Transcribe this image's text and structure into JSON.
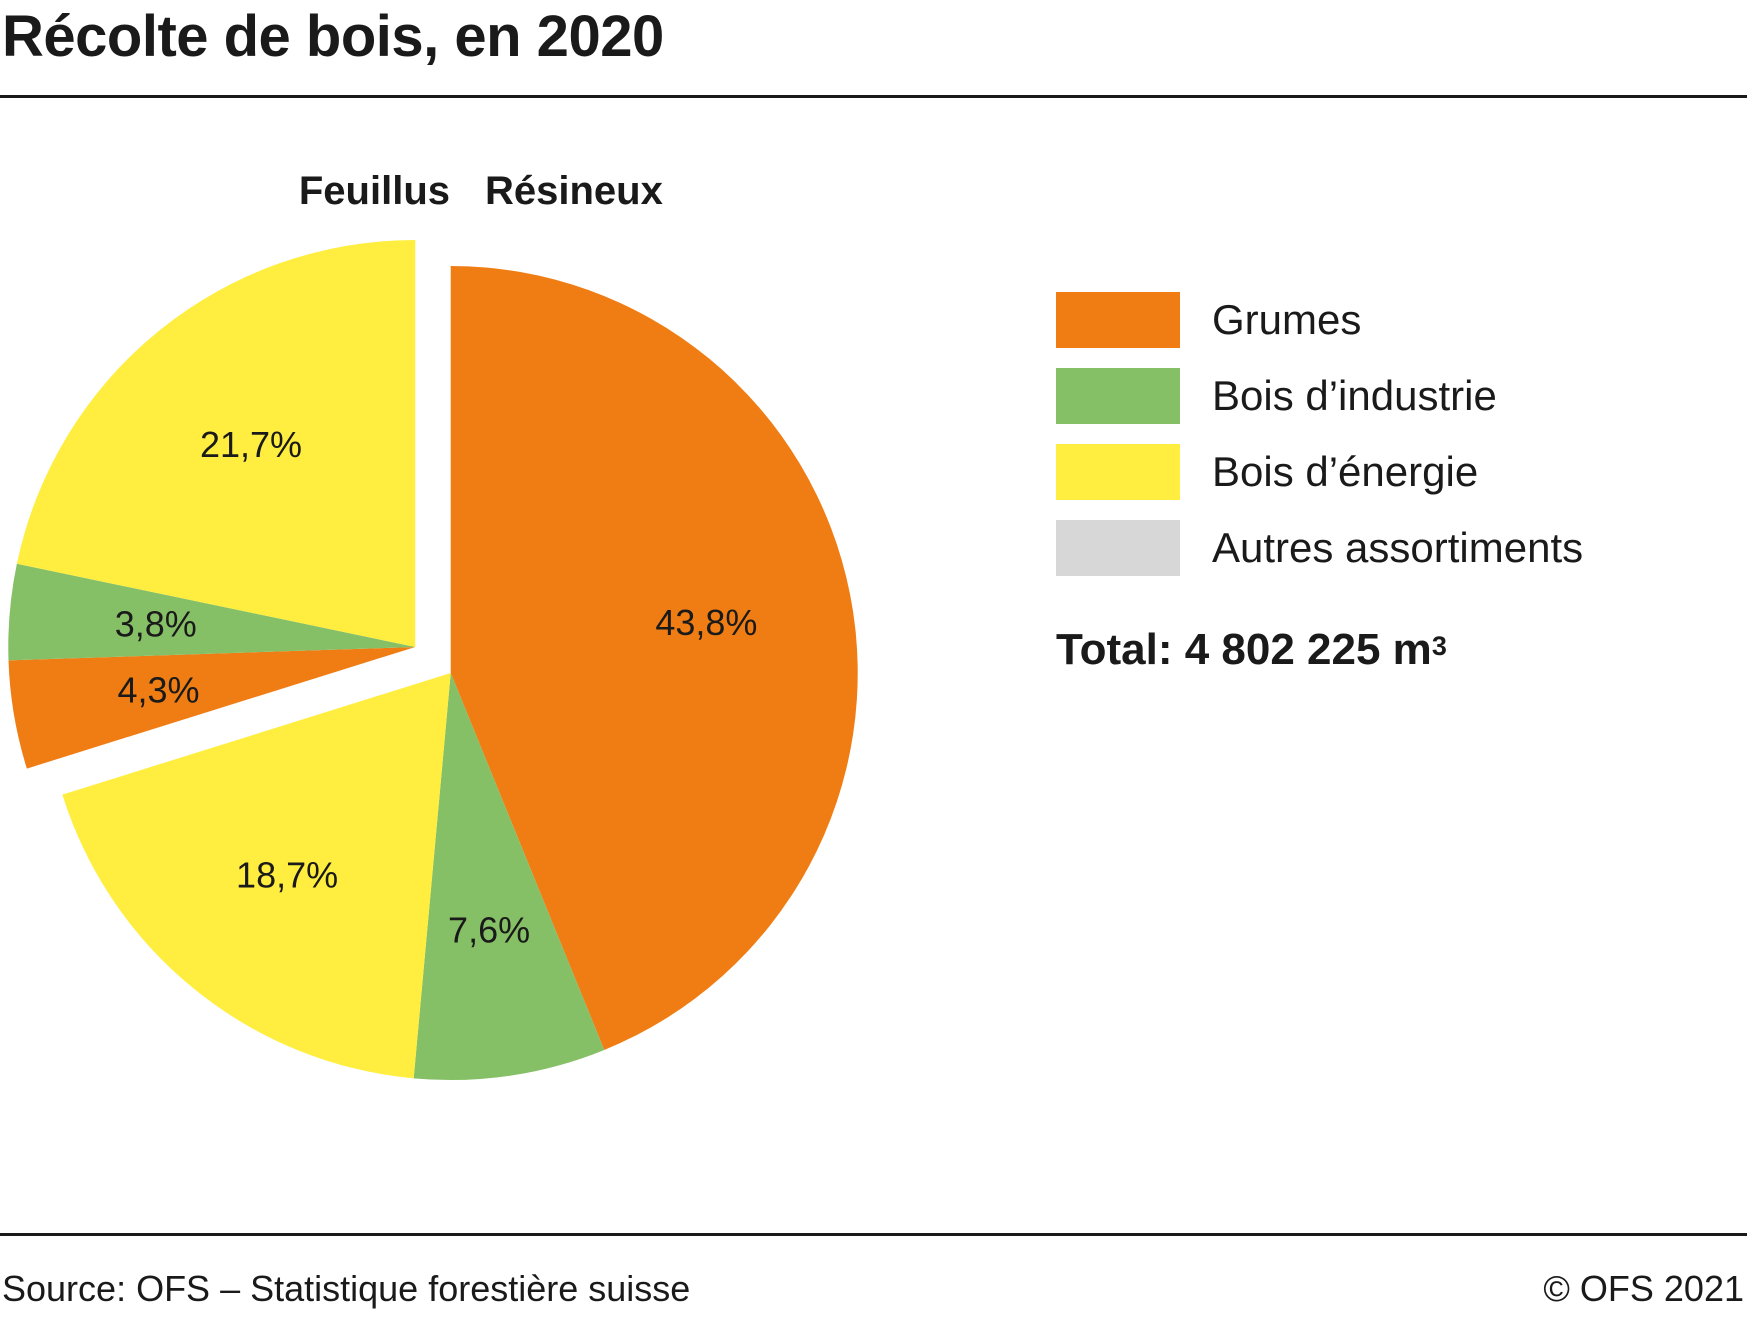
{
  "title": "Récolte de bois, en 2020",
  "footer": {
    "source": "Source: OFS – Statistique forestière suisse",
    "copyright": "© OFS 2021"
  },
  "total": {
    "label": "Total: 4 802 225 m",
    "unit_superscript": "3"
  },
  "colors": {
    "grumes": "#ef7d14",
    "bois_industrie": "#86c066",
    "bois_energie": "#ffee40",
    "autres": "#d6d7d6"
  },
  "legend": [
    {
      "label": "Grumes",
      "color": "#ef7d14"
    },
    {
      "label": "Bois d’industrie",
      "color": "#86c066"
    },
    {
      "label": "Bois d’énergie",
      "color": "#ffee40"
    },
    {
      "label": "Autres assortiments",
      "color": "#d6d7d6"
    }
  ],
  "chart_data": {
    "type": "pie",
    "title": "Récolte de bois, en 2020",
    "groups": [
      {
        "name": "Résineux",
        "slices": [
          {
            "category": "Grumes",
            "value": 43.8,
            "label": "43,8%",
            "color": "#ef7d14"
          },
          {
            "category": "Bois d’industrie",
            "value": 7.6,
            "label": "7,6%",
            "color": "#86c066"
          },
          {
            "category": "Bois d’énergie",
            "value": 18.7,
            "label": "18,7%",
            "color": "#ffee40"
          }
        ]
      },
      {
        "name": "Feuillus",
        "slices": [
          {
            "category": "Grumes",
            "value": 4.3,
            "label": "4,3%",
            "color": "#ef7d14"
          },
          {
            "category": "Bois d’industrie",
            "value": 3.8,
            "label": "3,8%",
            "color": "#86c066"
          },
          {
            "category": "Bois d’énergie",
            "value": 21.7,
            "label": "21,7%",
            "color": "#ffee40"
          }
        ]
      }
    ],
    "legend_placement": "right"
  }
}
